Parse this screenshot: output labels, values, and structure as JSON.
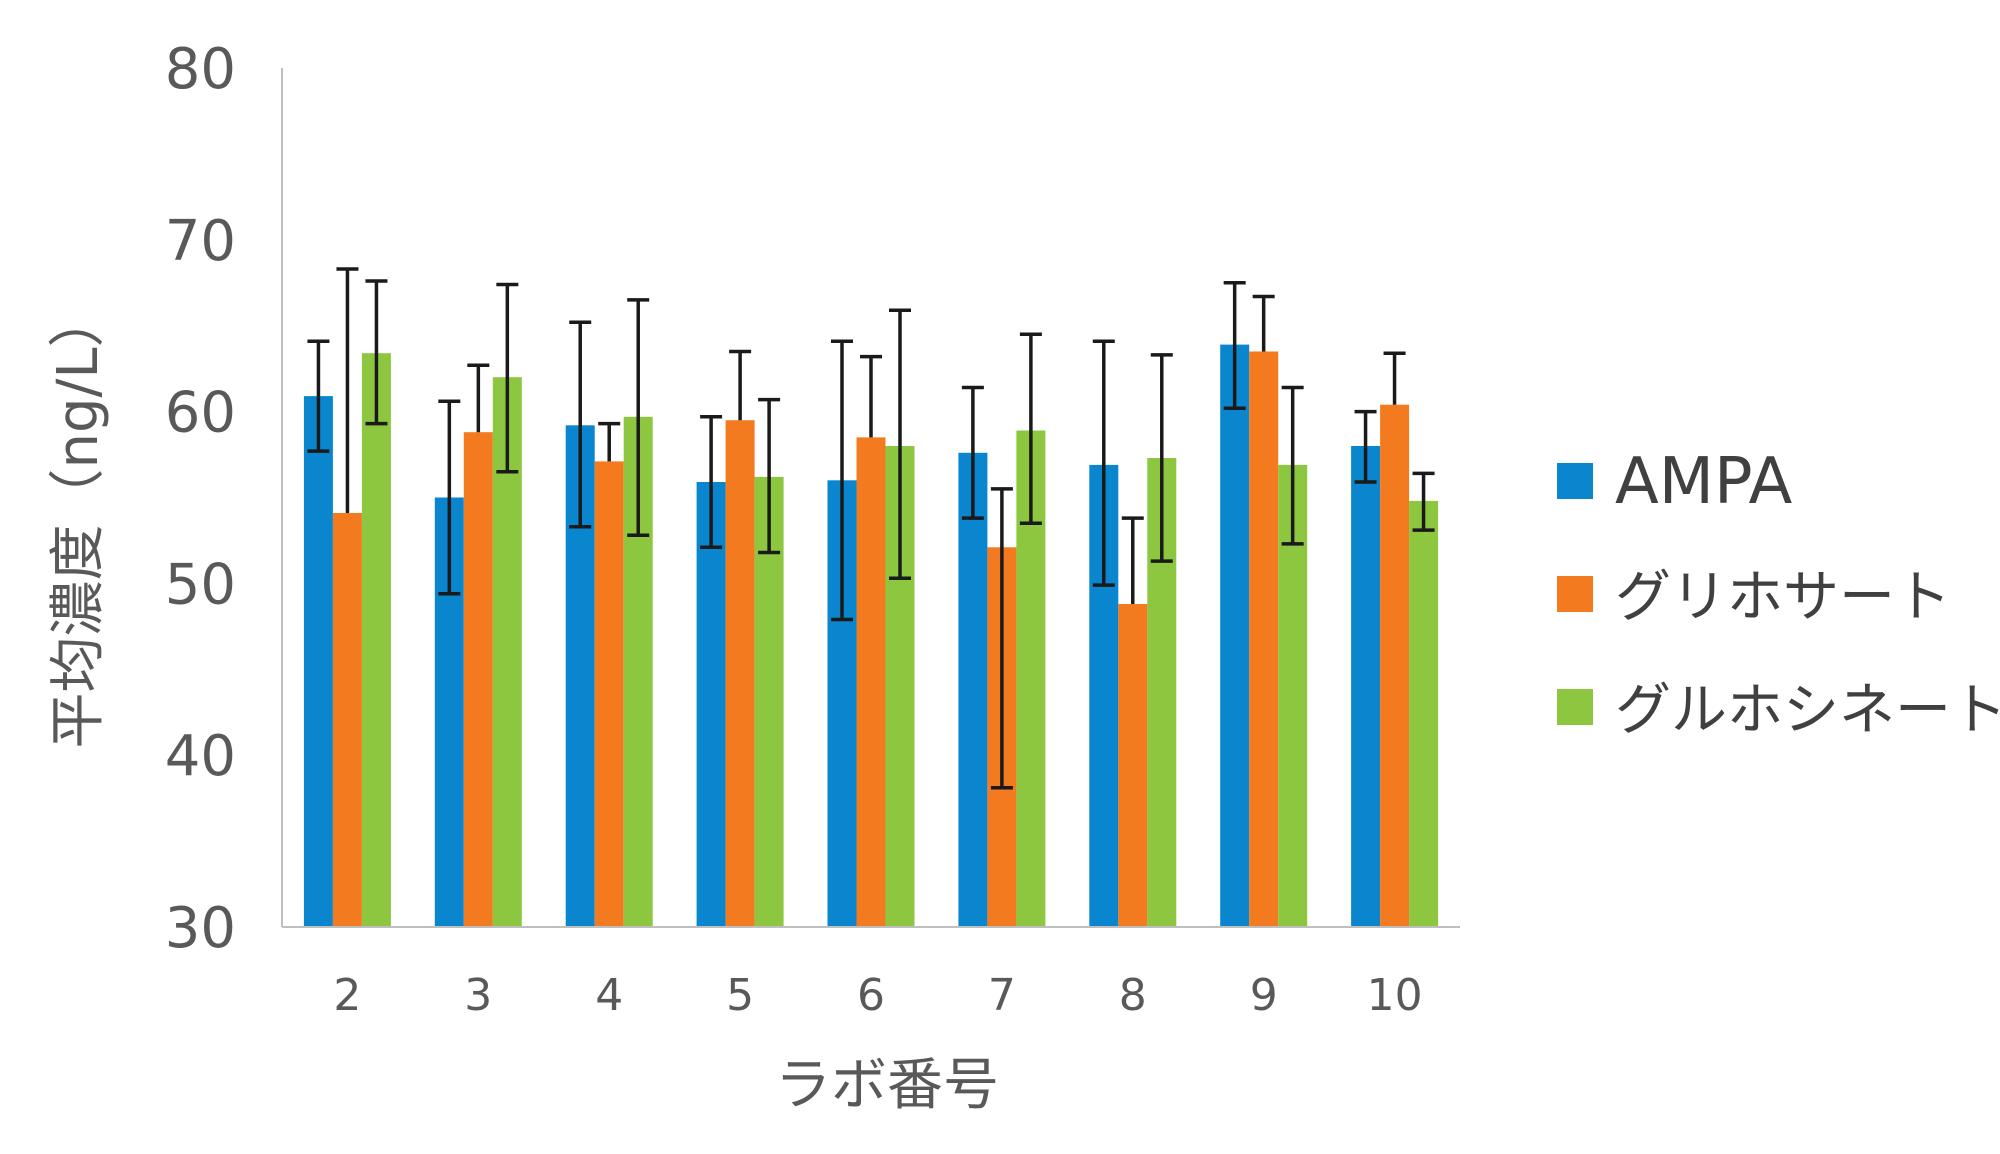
{
  "chart_data": {
    "type": "bar",
    "xlabel": "ラボ番号",
    "ylabel": "平均濃度（ng/L）",
    "ylim": [
      30,
      80
    ],
    "yticks": [
      30,
      40,
      50,
      60,
      70,
      80
    ],
    "grid": false,
    "legend_position": "right",
    "categories": [
      "2",
      "3",
      "4",
      "5",
      "6",
      "7",
      "8",
      "9",
      "10"
    ],
    "series": [
      {
        "name": "AMPA",
        "color": "#0A86CF",
        "values": [
          60.9,
          55.0,
          59.2,
          55.9,
          56.0,
          57.6,
          56.9,
          63.9,
          58.0
        ],
        "error_low": [
          57.7,
          49.4,
          53.3,
          52.1,
          47.9,
          53.8,
          49.9,
          60.2,
          55.9
        ],
        "error_high": [
          64.1,
          60.6,
          65.2,
          59.7,
          64.1,
          61.4,
          64.1,
          67.5,
          60.0
        ]
      },
      {
        "name": "グリホサート",
        "color": "#F47A20",
        "values": [
          54.1,
          58.8,
          57.1,
          59.5,
          58.5,
          52.1,
          48.8,
          63.5,
          60.4
        ],
        "error_low": [
          54.1,
          58.8,
          57.1,
          59.5,
          58.5,
          38.1,
          48.8,
          63.5,
          60.4
        ],
        "error_high": [
          68.3,
          62.7,
          59.3,
          63.5,
          63.2,
          55.5,
          53.8,
          66.7,
          63.4
        ]
      },
      {
        "name": "グルホシネート",
        "color": "#8DC63F",
        "values": [
          63.4,
          62.0,
          59.7,
          56.2,
          58.0,
          58.9,
          57.3,
          56.9,
          54.8
        ],
        "error_low": [
          59.3,
          56.5,
          52.8,
          51.8,
          50.3,
          53.5,
          51.3,
          52.3,
          53.1
        ],
        "error_high": [
          67.6,
          67.4,
          66.5,
          60.7,
          65.9,
          64.5,
          63.3,
          61.4,
          56.4
        ]
      }
    ]
  }
}
